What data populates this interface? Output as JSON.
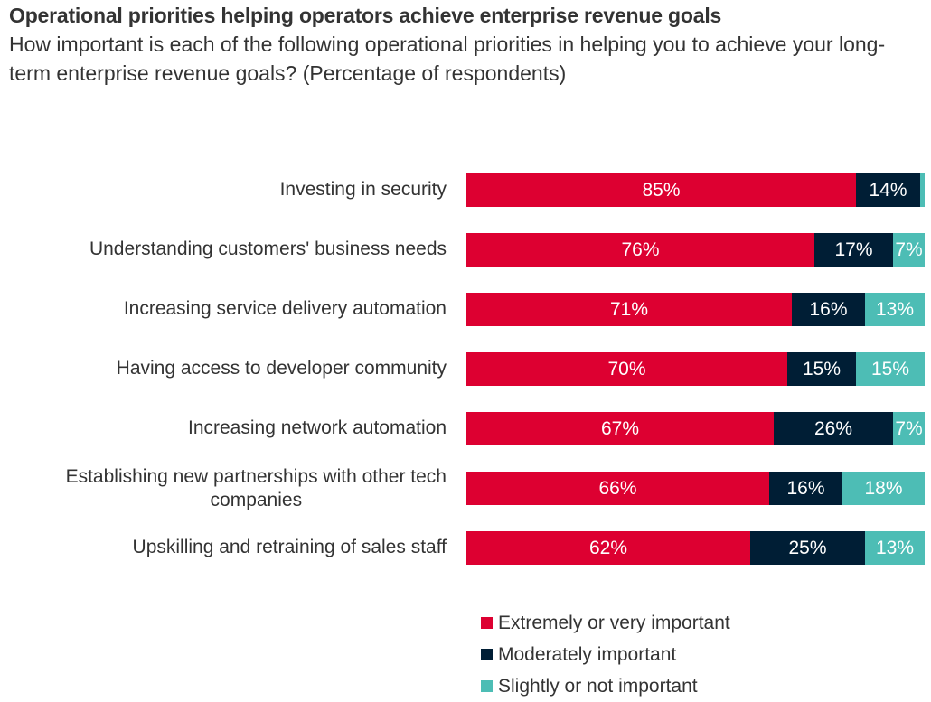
{
  "chart_data": {
    "type": "bar",
    "orientation": "horizontal",
    "stacked": true,
    "title": "Operational priorities helping operators achieve enterprise revenue goals",
    "subtitle": "How important is each of the following operational priorities in helping you to achieve your long-term enterprise revenue goals? (Percentage of respondents)",
    "xlabel": "",
    "ylabel": "",
    "xlim": [
      0,
      100
    ],
    "grid": false,
    "legend_position": "bottom-right",
    "categories": [
      "Investing in security",
      "Understanding customers' business needs",
      "Increasing service delivery automation",
      "Having access to developer community",
      "Increasing network automation",
      "Establishing new partnerships with other tech companies",
      "Upskilling and retraining of sales staff"
    ],
    "category_lines": [
      [
        "Investing in security"
      ],
      [
        "Understanding customers' business needs"
      ],
      [
        "Increasing service delivery automation"
      ],
      [
        "Having access to developer community"
      ],
      [
        "Increasing network automation"
      ],
      [
        "Establishing new partnerships with other tech",
        "companies"
      ],
      [
        "Upskilling and retraining of sales staff"
      ]
    ],
    "series": [
      {
        "name": "Extremely or very important",
        "color": "#DD0031",
        "values": [
          85,
          76,
          71,
          70,
          67,
          66,
          62
        ],
        "labels": [
          "85%",
          "76%",
          "71%",
          "70%",
          "67%",
          "66%",
          "62%"
        ]
      },
      {
        "name": "Moderately important",
        "color": "#001E35",
        "values": [
          14,
          17,
          16,
          15,
          26,
          16,
          25
        ],
        "labels": [
          "14%",
          "17%",
          "16%",
          "15%",
          "26%",
          "16%",
          "25%"
        ]
      },
      {
        "name": "Slightly or not important",
        "color": "#4DBDB5",
        "values": [
          1,
          7,
          13,
          15,
          7,
          18,
          13
        ],
        "labels": [
          "",
          "7%",
          "13%",
          "15%",
          "7%",
          "18%",
          "13%"
        ]
      }
    ]
  }
}
